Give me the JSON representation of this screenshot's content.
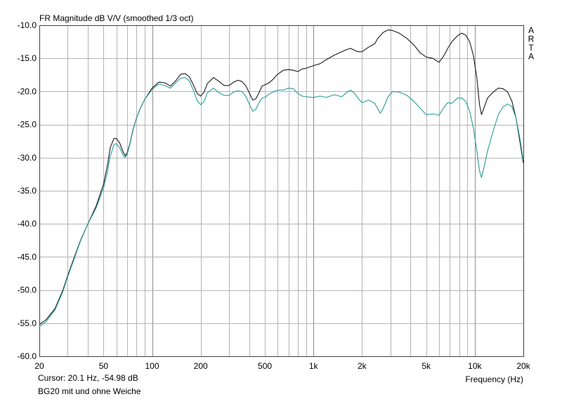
{
  "chart_data": {
    "type": "line",
    "title": "FR Magnitude dB V/V (smoothed 1/3 oct)",
    "watermark": "ARTA",
    "xlabel": "Frequency (Hz)",
    "xscale": "log",
    "xlim": [
      20,
      20000
    ],
    "ylim": [
      -60,
      -10
    ],
    "grid": true,
    "x_ticks": [
      {
        "value": 20,
        "label": "20"
      },
      {
        "value": 50,
        "label": "50"
      },
      {
        "value": 100,
        "label": "100"
      },
      {
        "value": 200,
        "label": "200"
      },
      {
        "value": 500,
        "label": "500"
      },
      {
        "value": 1000,
        "label": "1k"
      },
      {
        "value": 2000,
        "label": "2k"
      },
      {
        "value": 5000,
        "label": "5k"
      },
      {
        "value": 10000,
        "label": "10k"
      },
      {
        "value": 20000,
        "label": "20k"
      }
    ],
    "y_ticks": [
      {
        "value": -10,
        "label": "-10.0"
      },
      {
        "value": -15,
        "label": "-15.0"
      },
      {
        "value": -20,
        "label": "-20.0"
      },
      {
        "value": -25,
        "label": "-25.0"
      },
      {
        "value": -30,
        "label": "-30.0"
      },
      {
        "value": -35,
        "label": "-35.0"
      },
      {
        "value": -40,
        "label": "-40.0"
      },
      {
        "value": -45,
        "label": "-45.0"
      },
      {
        "value": -50,
        "label": "-50.0"
      },
      {
        "value": -55,
        "label": "-55.0"
      },
      {
        "value": -60,
        "label": "-60.0"
      }
    ],
    "series": [
      {
        "color": "#1a1a1a",
        "points": [
          [
            20,
            -55.2
          ],
          [
            22,
            -54.5
          ],
          [
            25,
            -52.8
          ],
          [
            28,
            -50
          ],
          [
            30,
            -47.8
          ],
          [
            33,
            -45
          ],
          [
            36,
            -42.5
          ],
          [
            40,
            -40
          ],
          [
            45,
            -37.3
          ],
          [
            50,
            -34
          ],
          [
            53,
            -31
          ],
          [
            55,
            -28.5
          ],
          [
            58,
            -27.1
          ],
          [
            60,
            -27.1
          ],
          [
            63,
            -27.8
          ],
          [
            66,
            -29.1
          ],
          [
            68,
            -29.7
          ],
          [
            70,
            -29.3
          ],
          [
            73,
            -27.8
          ],
          [
            76,
            -25.8
          ],
          [
            80,
            -24
          ],
          [
            85,
            -22.4
          ],
          [
            90,
            -21.2
          ],
          [
            100,
            -19.5
          ],
          [
            110,
            -18.6
          ],
          [
            120,
            -18.7
          ],
          [
            130,
            -19.2
          ],
          [
            140,
            -18.4
          ],
          [
            150,
            -17.4
          ],
          [
            160,
            -17.3
          ],
          [
            170,
            -17.8
          ],
          [
            180,
            -19
          ],
          [
            190,
            -20.3
          ],
          [
            200,
            -20.7
          ],
          [
            210,
            -20.1
          ],
          [
            220,
            -18.8
          ],
          [
            240,
            -17.9
          ],
          [
            260,
            -18.5
          ],
          [
            280,
            -19.1
          ],
          [
            300,
            -19.1
          ],
          [
            320,
            -18.6
          ],
          [
            340,
            -18.3
          ],
          [
            360,
            -18.5
          ],
          [
            380,
            -19.1
          ],
          [
            400,
            -20.2
          ],
          [
            420,
            -21.3
          ],
          [
            440,
            -21.1
          ],
          [
            460,
            -20.2
          ],
          [
            480,
            -19.2
          ],
          [
            500,
            -19
          ],
          [
            530,
            -18.7
          ],
          [
            560,
            -18.2
          ],
          [
            600,
            -17.4
          ],
          [
            650,
            -16.8
          ],
          [
            700,
            -16.7
          ],
          [
            750,
            -16.8
          ],
          [
            800,
            -17
          ],
          [
            850,
            -16.6
          ],
          [
            900,
            -16.5
          ],
          [
            1000,
            -16.1
          ],
          [
            1100,
            -15.8
          ],
          [
            1200,
            -15.2
          ],
          [
            1350,
            -14.5
          ],
          [
            1500,
            -14
          ],
          [
            1600,
            -13.7
          ],
          [
            1700,
            -13.5
          ],
          [
            1800,
            -13.8
          ],
          [
            1900,
            -14
          ],
          [
            2000,
            -14
          ],
          [
            2200,
            -13.3
          ],
          [
            2400,
            -12.8
          ],
          [
            2500,
            -12
          ],
          [
            2700,
            -11.1
          ],
          [
            2900,
            -10.7
          ],
          [
            3100,
            -10.8
          ],
          [
            3400,
            -11.2
          ],
          [
            3800,
            -12
          ],
          [
            4200,
            -13
          ],
          [
            4600,
            -14.2
          ],
          [
            5000,
            -14.8
          ],
          [
            5500,
            -15
          ],
          [
            6000,
            -15.6
          ],
          [
            6400,
            -14.7
          ],
          [
            6800,
            -13.5
          ],
          [
            7200,
            -12.5
          ],
          [
            7800,
            -11.6
          ],
          [
            8300,
            -11.2
          ],
          [
            8800,
            -11.5
          ],
          [
            9300,
            -12.5
          ],
          [
            9800,
            -14.5
          ],
          [
            10300,
            -18
          ],
          [
            10700,
            -22
          ],
          [
            11000,
            -23.5
          ],
          [
            11400,
            -22.5
          ],
          [
            12000,
            -21
          ],
          [
            13000,
            -20.1
          ],
          [
            14000,
            -19.5
          ],
          [
            15000,
            -19.6
          ],
          [
            16000,
            -20.1
          ],
          [
            17000,
            -21.5
          ],
          [
            18000,
            -24
          ],
          [
            19000,
            -27.5
          ],
          [
            20000,
            -30.8
          ]
        ]
      },
      {
        "color": "#2a9a9a",
        "points": [
          [
            20,
            -55.5
          ],
          [
            22,
            -54.8
          ],
          [
            25,
            -53
          ],
          [
            28,
            -50.2
          ],
          [
            30,
            -48
          ],
          [
            33,
            -45.2
          ],
          [
            36,
            -42.6
          ],
          [
            40,
            -40
          ],
          [
            45,
            -37.6
          ],
          [
            50,
            -34.6
          ],
          [
            53,
            -32
          ],
          [
            55,
            -29.8
          ],
          [
            58,
            -28
          ],
          [
            60,
            -27.9
          ],
          [
            63,
            -28.5
          ],
          [
            66,
            -29.6
          ],
          [
            68,
            -30
          ],
          [
            70,
            -29.5
          ],
          [
            73,
            -27.9
          ],
          [
            76,
            -25.9
          ],
          [
            80,
            -24
          ],
          [
            85,
            -22.4
          ],
          [
            90,
            -21.2
          ],
          [
            100,
            -19.7
          ],
          [
            110,
            -18.9
          ],
          [
            120,
            -19.1
          ],
          [
            130,
            -19.5
          ],
          [
            140,
            -18.7
          ],
          [
            150,
            -18
          ],
          [
            160,
            -17.9
          ],
          [
            170,
            -18.4
          ],
          [
            180,
            -19.8
          ],
          [
            190,
            -21.4
          ],
          [
            200,
            -22
          ],
          [
            210,
            -21.5
          ],
          [
            220,
            -20.2
          ],
          [
            240,
            -19.5
          ],
          [
            260,
            -20.2
          ],
          [
            280,
            -20.6
          ],
          [
            300,
            -20.6
          ],
          [
            320,
            -20.1
          ],
          [
            340,
            -19.9
          ],
          [
            360,
            -20
          ],
          [
            380,
            -20.7
          ],
          [
            400,
            -21.9
          ],
          [
            420,
            -23
          ],
          [
            440,
            -22.7
          ],
          [
            460,
            -21.7
          ],
          [
            480,
            -21
          ],
          [
            500,
            -20.9
          ],
          [
            530,
            -20.4
          ],
          [
            560,
            -20.1
          ],
          [
            600,
            -19.8
          ],
          [
            650,
            -19.8
          ],
          [
            700,
            -19.5
          ],
          [
            750,
            -19.6
          ],
          [
            800,
            -20.3
          ],
          [
            850,
            -20.7
          ],
          [
            900,
            -20.8
          ],
          [
            1000,
            -20.9
          ],
          [
            1100,
            -20.7
          ],
          [
            1200,
            -20.9
          ],
          [
            1350,
            -20.5
          ],
          [
            1500,
            -20.8
          ],
          [
            1600,
            -20.2
          ],
          [
            1700,
            -19.8
          ],
          [
            1800,
            -20.3
          ],
          [
            1900,
            -21.1
          ],
          [
            2000,
            -21.7
          ],
          [
            2200,
            -21.3
          ],
          [
            2400,
            -21.8
          ],
          [
            2500,
            -22.6
          ],
          [
            2600,
            -23.3
          ],
          [
            2700,
            -22.6
          ],
          [
            2900,
            -20.8
          ],
          [
            3100,
            -20
          ],
          [
            3400,
            -20.1
          ],
          [
            3800,
            -20.6
          ],
          [
            4200,
            -21.5
          ],
          [
            4600,
            -22.6
          ],
          [
            5000,
            -23.5
          ],
          [
            5500,
            -23.4
          ],
          [
            6000,
            -23.6
          ],
          [
            6400,
            -22.5
          ],
          [
            6800,
            -21.7
          ],
          [
            7200,
            -21.8
          ],
          [
            7800,
            -21
          ],
          [
            8300,
            -21
          ],
          [
            8800,
            -21.5
          ],
          [
            9300,
            -23
          ],
          [
            9800,
            -25.5
          ],
          [
            10300,
            -29
          ],
          [
            10700,
            -32
          ],
          [
            11000,
            -33
          ],
          [
            11400,
            -31.5
          ],
          [
            12000,
            -29
          ],
          [
            13000,
            -26
          ],
          [
            14000,
            -23.5
          ],
          [
            15000,
            -22.3
          ],
          [
            16000,
            -21.9
          ],
          [
            17000,
            -22.3
          ],
          [
            18000,
            -24
          ],
          [
            19000,
            -27
          ],
          [
            20000,
            -30.4
          ]
        ]
      }
    ]
  },
  "cursor_text": "Cursor: 20.1 Hz, -54.98 dB",
  "caption": "BG20 mit und ohne Weiche",
  "grid_color": "#b4b4b4"
}
